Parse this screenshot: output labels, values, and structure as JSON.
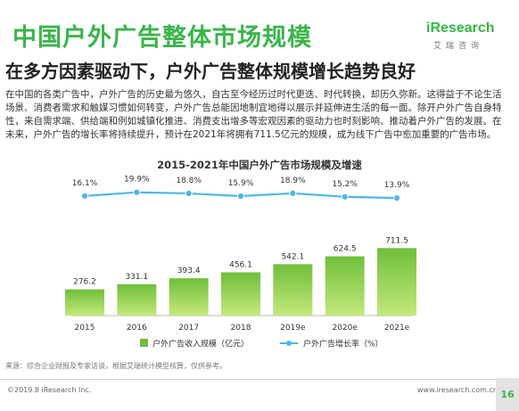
{
  "header": {
    "title": "中国户外广告整体市场规模",
    "logo_word": "iResearch",
    "logo_sub": "艾瑞咨询"
  },
  "subtitle": "在多方因素驱动下，户外广告整体规模增长趋势良好",
  "intro": "在中国的各类广告中，户外广告的历史最为悠久，自古至今经历过时代更迭、时代转换，却历久弥新。这得益于不论生活场景、消费者需求和触媒习惯如何转变，户外广告总能因地制宜地得以展示并延伸进生活的每一面。除开户外广告自身特性，来自需求端、供给端和例如城镇化推进、消费支出增多等宏观因素的驱动力也时刻影响、推动着户外广告的发展。在未来，户外广告的增长率将持续提升，预计在2021年将拥有711.5亿元的规模，成为线下广告中愈加重要的广告市场。",
  "chart_data": {
    "type": "bar+line",
    "title": "2015-2021年中国户外广告市场规模及增速",
    "categories": [
      "2015",
      "2016",
      "2017",
      "2018",
      "2019e",
      "2020e",
      "2021e"
    ],
    "series": [
      {
        "name": "户外广告收入规模（亿元）",
        "type": "bar",
        "values": [
          276.2,
          331.1,
          393.4,
          456.1,
          542.1,
          624.5,
          711.5
        ],
        "labels": [
          "276.2",
          "331.1",
          "393.4",
          "456.1",
          "542.1",
          "624.5",
          "711.5"
        ]
      },
      {
        "name": "户外广告增长率（%）",
        "type": "line",
        "values": [
          16.1,
          19.9,
          18.8,
          15.9,
          18.9,
          15.2,
          13.9
        ],
        "labels": [
          "16.1%",
          "19.9%",
          "18.8%",
          "15.9%",
          "18.9%",
          "15.2%",
          "13.9%"
        ]
      }
    ],
    "bar_ylim": [
      0,
      1400
    ],
    "line_ylim": [
      -110,
      30
    ],
    "legend_position": "bottom",
    "grid": false,
    "colors": {
      "bar_light": "#c5e87c",
      "bar_dark": "#6fbf3a",
      "line": "#4db6e8",
      "axis": "#bbbbbb"
    }
  },
  "source": "来源：综合企业财报及专家访谈，根据艾瑞统计模型核算，仅供参考。",
  "footer": {
    "copyright": "©2019.8 iResearch Inc.",
    "url": "www.iresearch.com.cn",
    "page": "16"
  }
}
